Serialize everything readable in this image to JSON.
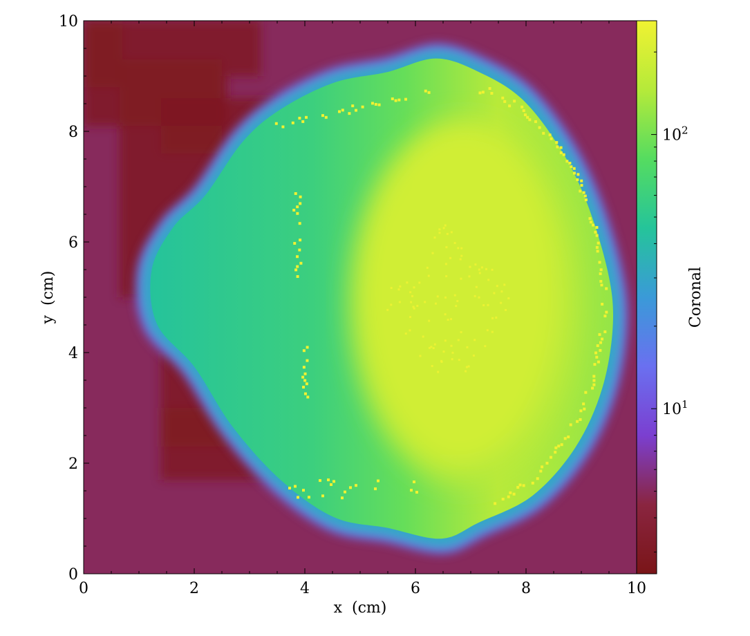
{
  "chart_data": {
    "type": "heatmap",
    "title": "",
    "xlabel": "x  (cm)",
    "ylabel": "y  (cm)",
    "xlim": [
      0,
      10
    ],
    "ylim": [
      0,
      10
    ],
    "x_ticks": [
      0,
      2,
      4,
      6,
      8,
      10
    ],
    "y_ticks": [
      0,
      2,
      4,
      6,
      8,
      10
    ],
    "x_tick_labels": [
      "0",
      "2",
      "4",
      "6",
      "8",
      "10"
    ],
    "y_tick_labels": [
      "0",
      "2",
      "4",
      "6",
      "8",
      "10"
    ],
    "colorbar": {
      "label": "Coronal",
      "scale": "log",
      "range": [
        2.5,
        260
      ],
      "ticks": [
        10,
        100
      ],
      "tick_bases": [
        "10",
        "10"
      ],
      "tick_exponents": [
        "1",
        "2"
      ],
      "colormap": [
        "#7a1518",
        "#8a2540",
        "#7b3fd0",
        "#6a70f0",
        "#3a9ad8",
        "#25c49a",
        "#55dc60",
        "#b5ea3a",
        "#f0f232"
      ]
    },
    "structure": {
      "background_value": 5,
      "dark_region_value": 3,
      "shell_edge_value": 60,
      "inner_left_value": 90,
      "core_value": 190,
      "outline": [
        [
          6.4,
          9.45
        ],
        [
          7.2,
          9.2
        ],
        [
          8.0,
          8.7
        ],
        [
          8.7,
          7.8
        ],
        [
          9.2,
          6.8
        ],
        [
          9.6,
          5.5
        ],
        [
          9.7,
          4.5
        ],
        [
          9.5,
          3.3
        ],
        [
          9.0,
          2.2
        ],
        [
          8.2,
          1.3
        ],
        [
          7.2,
          0.8
        ],
        [
          6.5,
          0.5
        ],
        [
          5.5,
          0.7
        ],
        [
          4.5,
          0.9
        ],
        [
          3.5,
          1.6
        ],
        [
          2.6,
          2.6
        ],
        [
          1.9,
          3.7
        ],
        [
          1.2,
          4.5
        ],
        [
          1.1,
          5.5
        ],
        [
          1.5,
          6.3
        ],
        [
          2.1,
          6.9
        ],
        [
          2.8,
          7.9
        ],
        [
          3.5,
          8.5
        ],
        [
          4.5,
          9.0
        ],
        [
          5.5,
          9.2
        ]
      ]
    }
  }
}
